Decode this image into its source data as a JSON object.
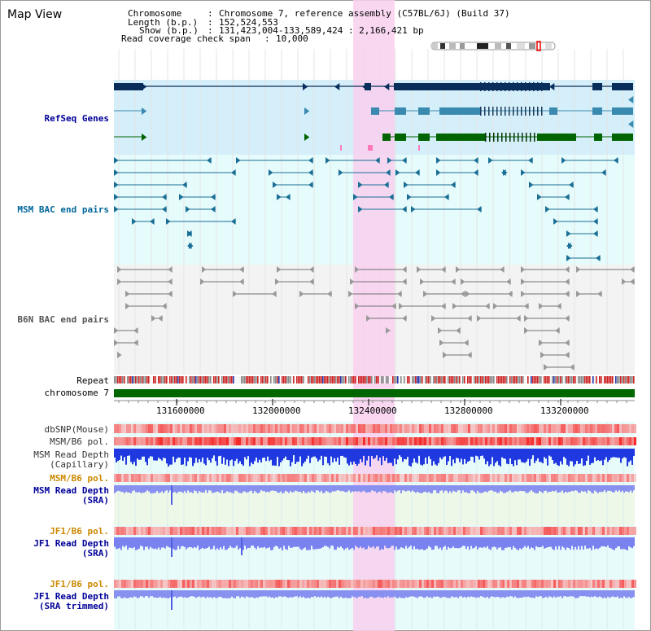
{
  "header": {
    "title": "Map View",
    "chromosome_label": "Chromosome",
    "chromosome_value": "Chromosome 7, reference assembly (C57BL/6J) (Build 37)",
    "length_label": "Length (b.p.)",
    "length_value": "152,524,553",
    "show_label": "Show (b.p.)",
    "show_value": "131,423,004-133,589,424 : 2,166,421 bp",
    "coverage_label": "Read coverage check span",
    "coverage_value": "10,000"
  },
  "tracks": {
    "refseq": "RefSeq Genes",
    "msm_bac": "MSM BAC end pairs",
    "b6n_bac": "B6N BAC end pairs",
    "repeat": "Repeat",
    "chromosome": "chromosome 7",
    "dbsnp": "dbSNP(Mouse)",
    "msm_b6_pol_1": "MSM/B6 pol.",
    "msm_depth_cap_1": "MSM Read Depth",
    "msm_depth_cap_2": "(Capillary)",
    "msm_b6_pol_2": "MSM/B6 pol.",
    "msm_depth_sra_1": "MSM Read Depth",
    "msm_depth_sra_2": "(SRA)",
    "jf1_b6_pol_1": "JF1/B6 pol.",
    "jf1_depth_sra_1": "JF1 Read Depth",
    "jf1_depth_sra_2": "(SRA)",
    "jf1_b6_pol_2": "JF1/B6 pol.",
    "jf1_depth_trim_1": "JF1 Read Depth",
    "jf1_depth_trim_2": "(SRA trimmed)"
  },
  "ruler": {
    "ticks": [
      "131600000",
      "132000000",
      "132400000",
      "132800000",
      "133200000"
    ]
  },
  "colors": {
    "refseq_label": "#000099",
    "msm_label": "#006699",
    "b6n_label": "#555555",
    "pol_label": "#cc8800",
    "depth_label": "#000099",
    "highlight": "#f8d0ee",
    "refseq_bg": "#d4eefa",
    "msm_bg": "#e6fbfb",
    "b6n_bg": "#f3f3f3",
    "chrom_bar": "#006600",
    "gene_dark": "#0a2e5c",
    "gene_mid": "#3a8ab0",
    "gene_green": "#006400",
    "msm_pair": "#1a6f96",
    "b6n_pair": "#707070"
  }
}
